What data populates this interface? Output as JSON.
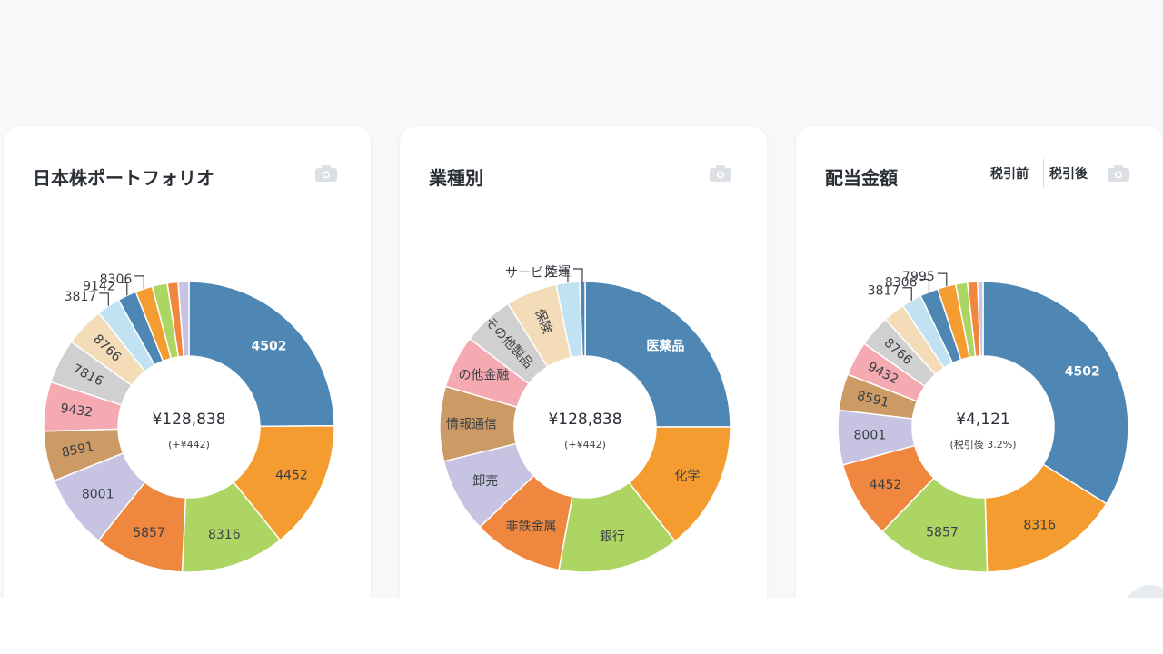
{
  "cards": [
    {
      "title": "日本株ポートフォリオ",
      "icon": "camera-icon"
    },
    {
      "title": "業種別",
      "icon": "camera-icon"
    },
    {
      "title": "配当金額",
      "icon": "camera-icon",
      "toggle": [
        "税引前",
        "税引後"
      ]
    }
  ],
  "chart_data": [
    {
      "type": "pie",
      "title": "日本株ポートフォリオ",
      "center_value": "¥128,838",
      "center_sub": "(+¥442)",
      "slices": [
        {
          "label": "4502",
          "value": 0.25,
          "color": "#4e87b4"
        },
        {
          "label": "4452",
          "value": 0.144,
          "color": "#f49c2f"
        },
        {
          "label": "8316",
          "value": 0.116,
          "color": "#add564"
        },
        {
          "label": "5857",
          "value": 0.1,
          "color": "#ef873e"
        },
        {
          "label": "8001",
          "value": 0.083,
          "color": "#c7c3e3"
        },
        {
          "label": "8591",
          "value": 0.056,
          "color": "#cc9a64"
        },
        {
          "label": "9432",
          "value": 0.055,
          "color": "#f4aab0"
        },
        {
          "label": "7816",
          "value": 0.05,
          "color": "#d0d0d0"
        },
        {
          "label": "8766",
          "value": 0.044,
          "color": "#f4dcb8"
        },
        {
          "label": "3817",
          "value": 0.026,
          "color": "#c0e2f2"
        },
        {
          "label": "9142",
          "value": 0.021,
          "color": "#4e87b4"
        },
        {
          "label": "8306",
          "value": 0.019,
          "color": "#f49c2f"
        },
        {
          "label": "",
          "value": 0.017,
          "color": "#add564"
        },
        {
          "label": "",
          "value": 0.012,
          "color": "#ef873e"
        },
        {
          "label": "",
          "value": 0.012,
          "color": "#c7c3e3"
        }
      ]
    },
    {
      "type": "pie",
      "title": "業種別",
      "center_value": "¥128,838",
      "center_sub": "(+¥442)",
      "slices": [
        {
          "label": "医薬品",
          "value": 0.25,
          "color": "#4e87b4"
        },
        {
          "label": "化学",
          "value": 0.144,
          "color": "#f49c2f"
        },
        {
          "label": "銀行",
          "value": 0.135,
          "color": "#add564"
        },
        {
          "label": "非鉄金属",
          "value": 0.1,
          "color": "#ef873e"
        },
        {
          "label": "卸売",
          "value": 0.083,
          "color": "#c7c3e3"
        },
        {
          "label": "情報通信",
          "value": 0.083,
          "color": "#cc9a64"
        },
        {
          "label": "の他金融",
          "value": 0.059,
          "color": "#f4aab0"
        },
        {
          "label": "その他製品",
          "value": 0.057,
          "color": "#d0d0d0"
        },
        {
          "label": "保険",
          "value": 0.057,
          "color": "#f4dcb8"
        },
        {
          "label": "サービス",
          "value": 0.026,
          "color": "#c0e2f2"
        },
        {
          "label": "陸運",
          "value": 0.006,
          "color": "#4e87b4"
        }
      ]
    },
    {
      "type": "pie",
      "title": "配当金額",
      "center_value": "¥4,121",
      "center_sub": "(税引後 3.2%)",
      "slices": [
        {
          "label": "4502",
          "value": 0.335,
          "color": "#4e87b4"
        },
        {
          "label": "8316",
          "value": 0.155,
          "color": "#f49c2f"
        },
        {
          "label": "5857",
          "value": 0.125,
          "color": "#add564"
        },
        {
          "label": "4452",
          "value": 0.085,
          "color": "#ef873e"
        },
        {
          "label": "8001",
          "value": 0.06,
          "color": "#c7c3e3"
        },
        {
          "label": "8591",
          "value": 0.04,
          "color": "#cc9a64"
        },
        {
          "label": "9432",
          "value": 0.038,
          "color": "#f4aab0"
        },
        {
          "label": "8766",
          "value": 0.035,
          "color": "#d0d0d0"
        },
        {
          "label": "",
          "value": 0.024,
          "color": "#f4dcb8"
        },
        {
          "label": "3817",
          "value": 0.022,
          "color": "#c0e2f2"
        },
        {
          "label": "8306",
          "value": 0.02,
          "color": "#4e87b4"
        },
        {
          "label": "7995",
          "value": 0.02,
          "color": "#f49c2f"
        },
        {
          "label": "",
          "value": 0.013,
          "color": "#add564"
        },
        {
          "label": "",
          "value": 0.011,
          "color": "#ef873e"
        },
        {
          "label": "",
          "value": 0.006,
          "color": "#c7c3e3"
        }
      ]
    }
  ]
}
